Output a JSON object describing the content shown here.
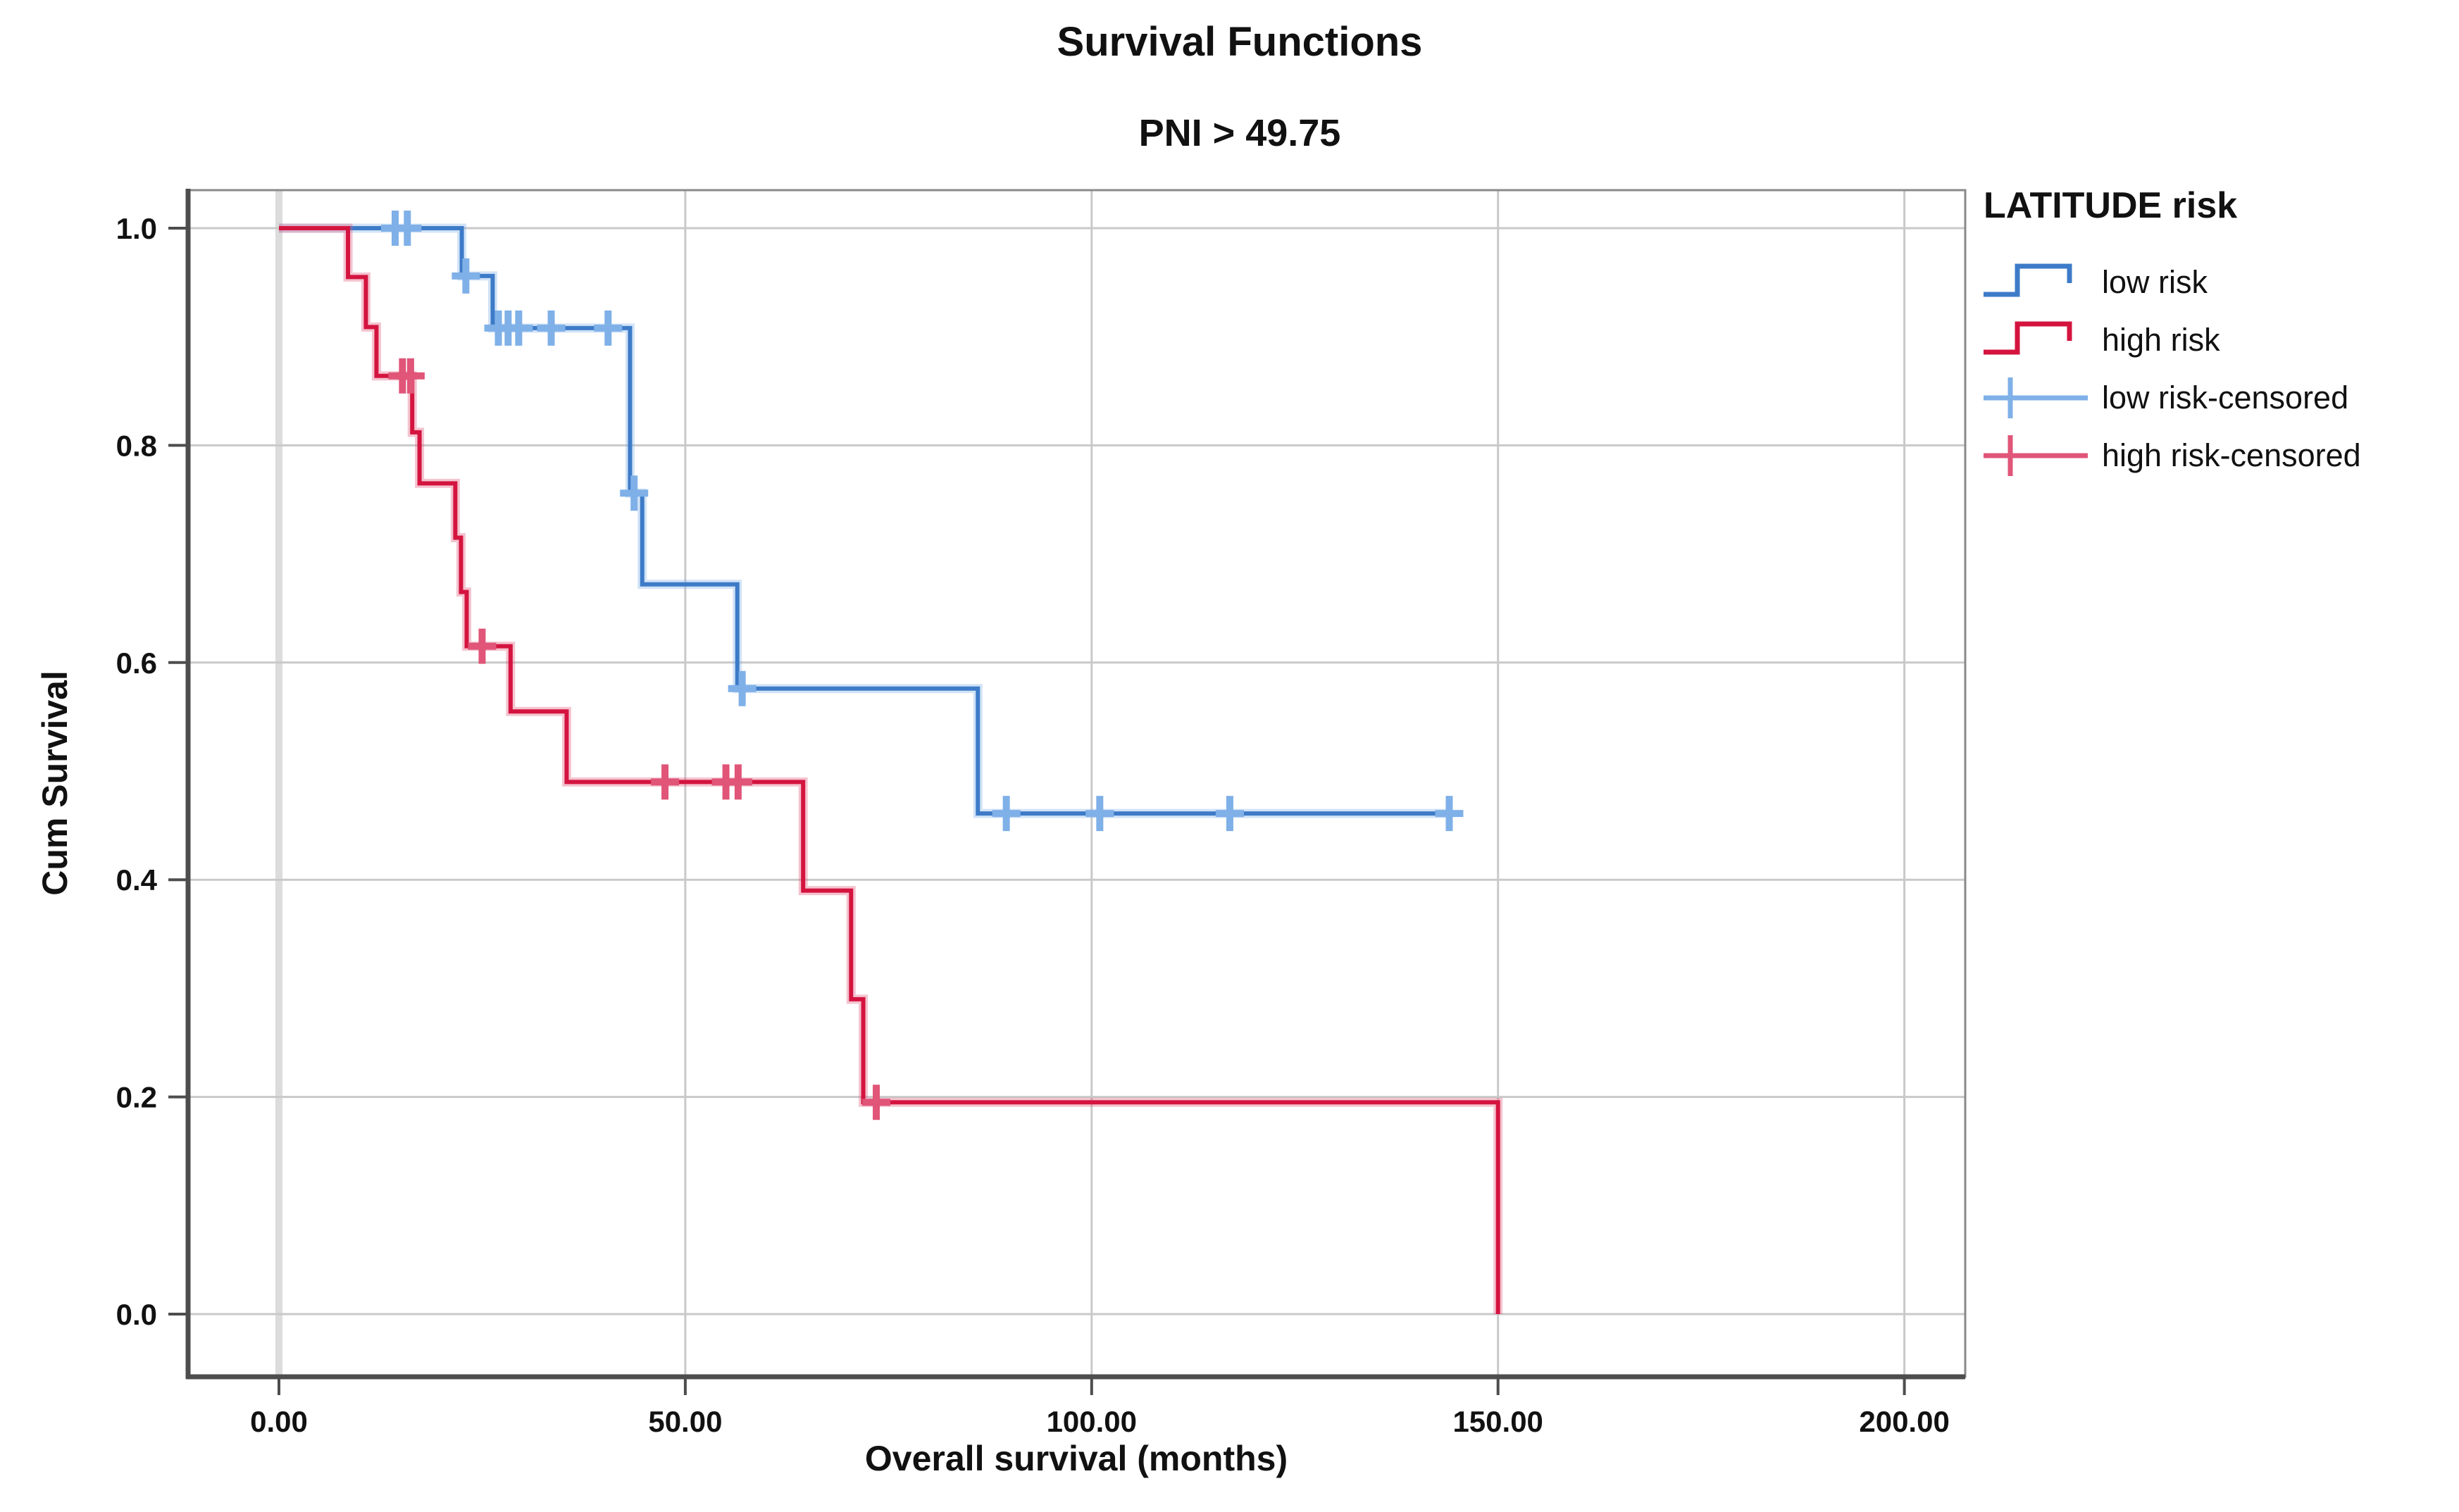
{
  "header": {
    "title": "Survival Functions",
    "subtitle": "PNI > 49.75"
  },
  "axes": {
    "x_label": "Overall survival (months)",
    "y_label": "Cum Survival"
  },
  "legend": {
    "title": "LATITUDE risk",
    "entries": [
      {
        "label": "low risk",
        "type": "step-line",
        "color": "#3d7bc8"
      },
      {
        "label": "high risk",
        "type": "step-line",
        "color": "#d4143f"
      },
      {
        "label": "low risk-censored",
        "type": "censor-mark",
        "color": "#7fb0e8"
      },
      {
        "label": "high risk-censored",
        "type": "censor-mark",
        "color": "#e05578"
      }
    ]
  },
  "chart_data": {
    "type": "line",
    "subtype": "kaplan-meier-step",
    "title": "Survival Functions",
    "subtitle": "PNI > 49.75",
    "xlabel": "Overall survival (months)",
    "ylabel": "Cum Survival",
    "x_ticks": [
      0,
      50,
      100,
      150,
      200
    ],
    "x_tick_labels": [
      "0.00",
      "50.00",
      "100.00",
      "150.00",
      "200.00"
    ],
    "y_ticks": [
      1.0,
      0.8,
      0.6,
      0.4,
      0.2,
      0.0
    ],
    "y_tick_labels": [
      "1.0",
      "0.8",
      "0.6",
      "0.4",
      "0.2",
      "0.0"
    ],
    "xlim": [
      -11,
      207
    ],
    "ylim": [
      -0.06,
      1.04
    ],
    "grid": true,
    "legend_position": "right",
    "series": [
      {
        "name": "low risk",
        "color": "#3d7bc8",
        "censor_color": "#7fb0e8",
        "steps": [
          [
            0,
            1.0
          ],
          [
            22.5,
            0.956
          ],
          [
            26.3,
            0.908
          ],
          [
            43.2,
            0.756
          ],
          [
            44.7,
            0.672
          ],
          [
            56.4,
            0.576
          ],
          [
            86,
            0.461
          ]
        ],
        "end_x": 144,
        "censored": [
          [
            14.3,
            1.0
          ],
          [
            15.8,
            1.0
          ],
          [
            23.0,
            0.956
          ],
          [
            27.0,
            0.908
          ],
          [
            28.2,
            0.908
          ],
          [
            29.5,
            0.908
          ],
          [
            33.5,
            0.908
          ],
          [
            40.5,
            0.908
          ],
          [
            43.7,
            0.756
          ],
          [
            57.0,
            0.576
          ],
          [
            89.5,
            0.461
          ],
          [
            101,
            0.461
          ],
          [
            117,
            0.461
          ],
          [
            144,
            0.461
          ]
        ]
      },
      {
        "name": "high risk",
        "color": "#d4143f",
        "censor_color": "#e05578",
        "steps": [
          [
            0,
            1.0
          ],
          [
            8.5,
            0.955
          ],
          [
            10.7,
            0.909
          ],
          [
            12.0,
            0.864
          ],
          [
            16.4,
            0.812
          ],
          [
            17.3,
            0.765
          ],
          [
            21.7,
            0.715
          ],
          [
            22.4,
            0.665
          ],
          [
            23.1,
            0.615
          ],
          [
            28.5,
            0.555
          ],
          [
            35.4,
            0.49
          ],
          [
            64.5,
            0.39
          ],
          [
            70.4,
            0.29
          ],
          [
            71.9,
            0.195
          ],
          [
            150,
            0.0
          ]
        ],
        "end_x": 150,
        "censored": [
          [
            15.2,
            0.864
          ],
          [
            16.2,
            0.864
          ],
          [
            25.0,
            0.615
          ],
          [
            47.5,
            0.49
          ],
          [
            55.0,
            0.49
          ],
          [
            56.5,
            0.49
          ],
          [
            73.5,
            0.195
          ]
        ]
      }
    ]
  },
  "style": {
    "grid_color": "#c9c9c9",
    "zero_grid_color": "#dcdcdc",
    "frame_color": "#8a8a8a",
    "axis_color": "#4d4d4d",
    "text_color": "#111111",
    "background": "#ffffff"
  }
}
